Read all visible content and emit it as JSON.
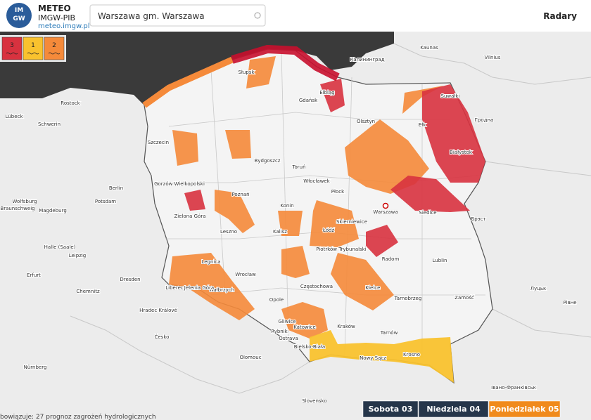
{
  "header": {
    "logo": {
      "badge_top": "IM",
      "badge_bottom": "GW",
      "name": "METEO",
      "org": "IMGW-PIB",
      "url": "meteo.imgw.pl"
    },
    "search": "Warszawa gm. Warszawa",
    "nav": "Radary"
  },
  "legend": {
    "levels": [
      "3",
      "1",
      "2"
    ]
  },
  "map": {
    "labels": [
      "Gdańsk",
      "Elbląg",
      "Olsztyn",
      "Białystok",
      "Suwałki",
      "Ełk",
      "Bydgoszcz",
      "Toruń",
      "Szczecin",
      "Słupsk",
      "Gorzów Wielkopolski",
      "Zielona Góra",
      "Poznań",
      "Leszno",
      "Konin",
      "Kalisz",
      "Płock",
      "Włocławek",
      "Warszawa",
      "Skierniewice",
      "Łódź",
      "Siedlce",
      "Radom",
      "Piotrków Trybunalski",
      "Lublin",
      "Kielce",
      "Częstochowa",
      "Wrocław",
      "Legnica",
      "Wałbrzych",
      "Jelenia Góra",
      "Opole",
      "Katowice",
      "Gliwice",
      "Rybnik",
      "Bielsko-Biała",
      "Kraków",
      "Tarnów",
      "Nowy Sącz",
      "Krosno",
      "Tarnobrzeg",
      "Zamość",
      "Ostrava",
      "Olomouc",
      "Česko",
      "Slovensko",
      "Berlin",
      "Potsdam",
      "Magdeburg",
      "Leipzig",
      "Dresden",
      "Erfurt",
      "Halle (Saale)",
      "Chemnitz",
      "Nürnberg",
      "Rostock",
      "Lübeck",
      "Schwerin",
      "Wolfsburg",
      "Braunschweig",
      "Liberec",
      "Hradec Králové",
      "Калининград",
      "Kaunas",
      "Vilnius",
      "Гродна",
      "Брэст",
      "Луцьк",
      "Рівне",
      "Івано-Франківськ"
    ]
  },
  "days": [
    "Sobota 03",
    "Niedziela 04",
    "Poniedziałek 05"
  ],
  "footer": "bowiązuje: 27 prognoz zagrożeń hydrologicznych"
}
